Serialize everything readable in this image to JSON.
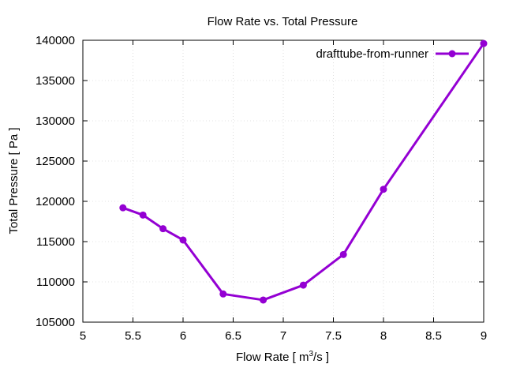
{
  "chart_data": {
    "type": "line",
    "title": "Flow Rate vs. Total Pressure",
    "xlabel_main": "Flow Rate [ m",
    "xlabel_sup": "3",
    "xlabel_end": "/s ]",
    "ylabel": "Total Pressure [ Pa ]",
    "xlim": [
      5,
      9
    ],
    "ylim": [
      105000,
      140000
    ],
    "xticks": [
      "5",
      "5.5",
      "6",
      "6.5",
      "7",
      "7.5",
      "8",
      "8.5",
      "9"
    ],
    "yticks": [
      "105000",
      "110000",
      "115000",
      "120000",
      "125000",
      "130000",
      "135000",
      "140000"
    ],
    "grid": true,
    "legend_position": "top-right",
    "series": [
      {
        "name": "drafttube-from-runner",
        "color": "#9400d3",
        "x": [
          5.4,
          5.6,
          5.8,
          6.0,
          6.4,
          6.8,
          7.2,
          7.6,
          8.0,
          9.0
        ],
        "y": [
          119200,
          118300,
          116600,
          115200,
          108500,
          107750,
          109600,
          113400,
          121500,
          139600
        ]
      }
    ]
  }
}
